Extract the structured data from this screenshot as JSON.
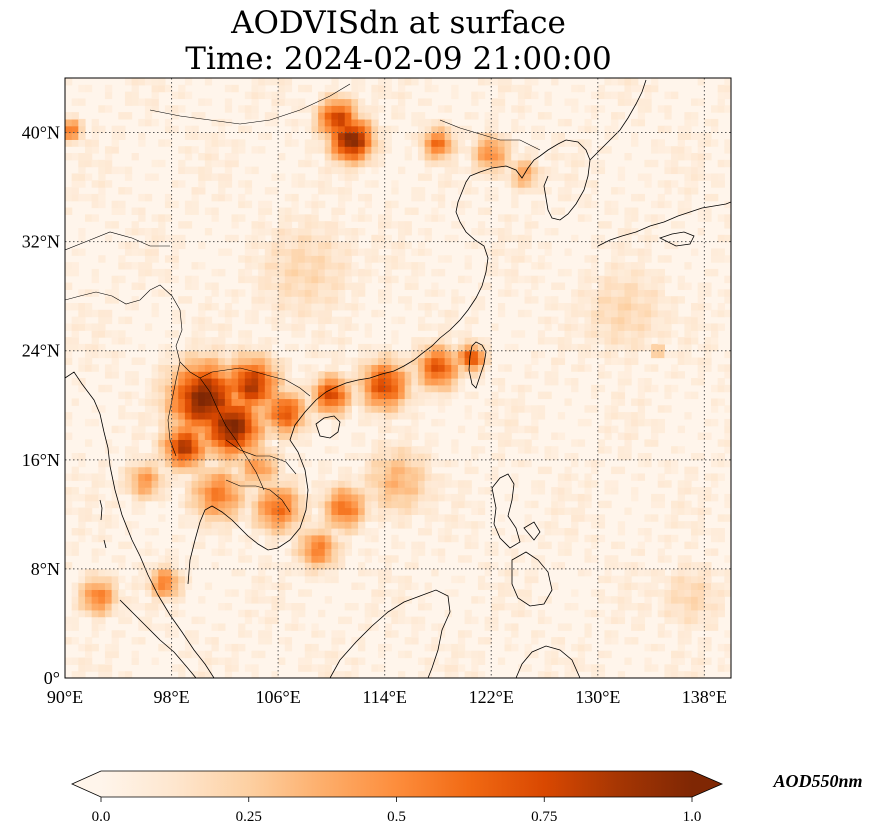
{
  "title": {
    "line1": "AODVISdn at surface",
    "line2": "Time: 2024-02-09 21:00:00"
  },
  "map": {
    "lon_range": [
      90,
      140
    ],
    "lat_range": [
      0,
      44
    ],
    "lon_ticks": [
      90,
      98,
      106,
      114,
      122,
      130,
      138
    ],
    "lat_ticks": [
      0,
      8,
      16,
      24,
      32,
      40
    ],
    "lon_labels": [
      "90°E",
      "98°E",
      "106°E",
      "114°E",
      "122°E",
      "130°E",
      "138°E"
    ],
    "lat_labels": [
      "0°",
      "8°N",
      "16°N",
      "24°N",
      "32°N",
      "40°N"
    ],
    "gridlines": true,
    "hotspots": [
      {
        "lon": 111.5,
        "lat": 39.5,
        "value": 1.0,
        "spread": 1.6
      },
      {
        "lon": 110.5,
        "lat": 41.0,
        "value": 0.8,
        "spread": 1.5
      },
      {
        "lon": 100.5,
        "lat": 20.5,
        "value": 1.0,
        "spread": 2.6
      },
      {
        "lon": 102.5,
        "lat": 18.5,
        "value": 1.0,
        "spread": 2.2
      },
      {
        "lon": 104.0,
        "lat": 21.5,
        "value": 0.85,
        "spread": 2.0
      },
      {
        "lon": 99.0,
        "lat": 17.0,
        "value": 0.85,
        "spread": 1.6
      },
      {
        "lon": 106.5,
        "lat": 19.5,
        "value": 0.7,
        "spread": 1.6
      },
      {
        "lon": 110.0,
        "lat": 20.8,
        "value": 0.75,
        "spread": 1.4
      },
      {
        "lon": 114.0,
        "lat": 21.5,
        "value": 0.75,
        "spread": 1.8
      },
      {
        "lon": 118.0,
        "lat": 22.8,
        "value": 0.7,
        "spread": 1.6
      },
      {
        "lon": 120.5,
        "lat": 23.5,
        "value": 0.75,
        "spread": 1.0
      },
      {
        "lon": 106.0,
        "lat": 12.5,
        "value": 0.6,
        "spread": 1.8
      },
      {
        "lon": 111.0,
        "lat": 12.5,
        "value": 0.6,
        "spread": 1.6
      },
      {
        "lon": 109.0,
        "lat": 9.5,
        "value": 0.55,
        "spread": 1.5
      },
      {
        "lon": 101.5,
        "lat": 13.5,
        "value": 0.55,
        "spread": 2.0
      },
      {
        "lon": 97.5,
        "lat": 7.0,
        "value": 0.55,
        "spread": 1.2
      },
      {
        "lon": 92.5,
        "lat": 6.0,
        "value": 0.55,
        "spread": 1.4
      },
      {
        "lon": 90.5,
        "lat": 40.2,
        "value": 0.6,
        "spread": 0.8
      },
      {
        "lon": 118.0,
        "lat": 39.2,
        "value": 0.6,
        "spread": 1.2
      },
      {
        "lon": 122.0,
        "lat": 38.5,
        "value": 0.5,
        "spread": 1.4
      },
      {
        "lon": 124.5,
        "lat": 37.0,
        "value": 0.4,
        "spread": 1.2
      },
      {
        "lon": 96.0,
        "lat": 14.5,
        "value": 0.45,
        "spread": 1.4
      },
      {
        "lon": 104.5,
        "lat": 15.5,
        "value": 0.45,
        "spread": 1.6
      },
      {
        "lon": 115.0,
        "lat": 14.5,
        "value": 0.35,
        "spread": 2.5
      },
      {
        "lon": 108.0,
        "lat": 30.0,
        "value": 0.2,
        "spread": 4.0
      },
      {
        "lon": 132.0,
        "lat": 27.0,
        "value": 0.2,
        "spread": 3.5
      },
      {
        "lon": 134.5,
        "lat": 24.0,
        "value": 0.35,
        "spread": 0.5
      },
      {
        "lon": 137.0,
        "lat": 6.0,
        "value": 0.2,
        "spread": 2.5
      }
    ]
  },
  "colorbar": {
    "label": "AOD550nm",
    "min": 0.0,
    "max": 1.0,
    "ticks": [
      0.0,
      0.25,
      0.5,
      0.75,
      1.0
    ],
    "tick_labels": [
      "0.0",
      "0.25",
      "0.5",
      "0.75",
      "1.0"
    ],
    "colors": [
      "#fff5eb",
      "#fee6ce",
      "#fdd0a2",
      "#fdae6b",
      "#fd8d3c",
      "#f16913",
      "#d94801",
      "#a63603",
      "#7f2704"
    ],
    "colormap": "OrRd"
  }
}
